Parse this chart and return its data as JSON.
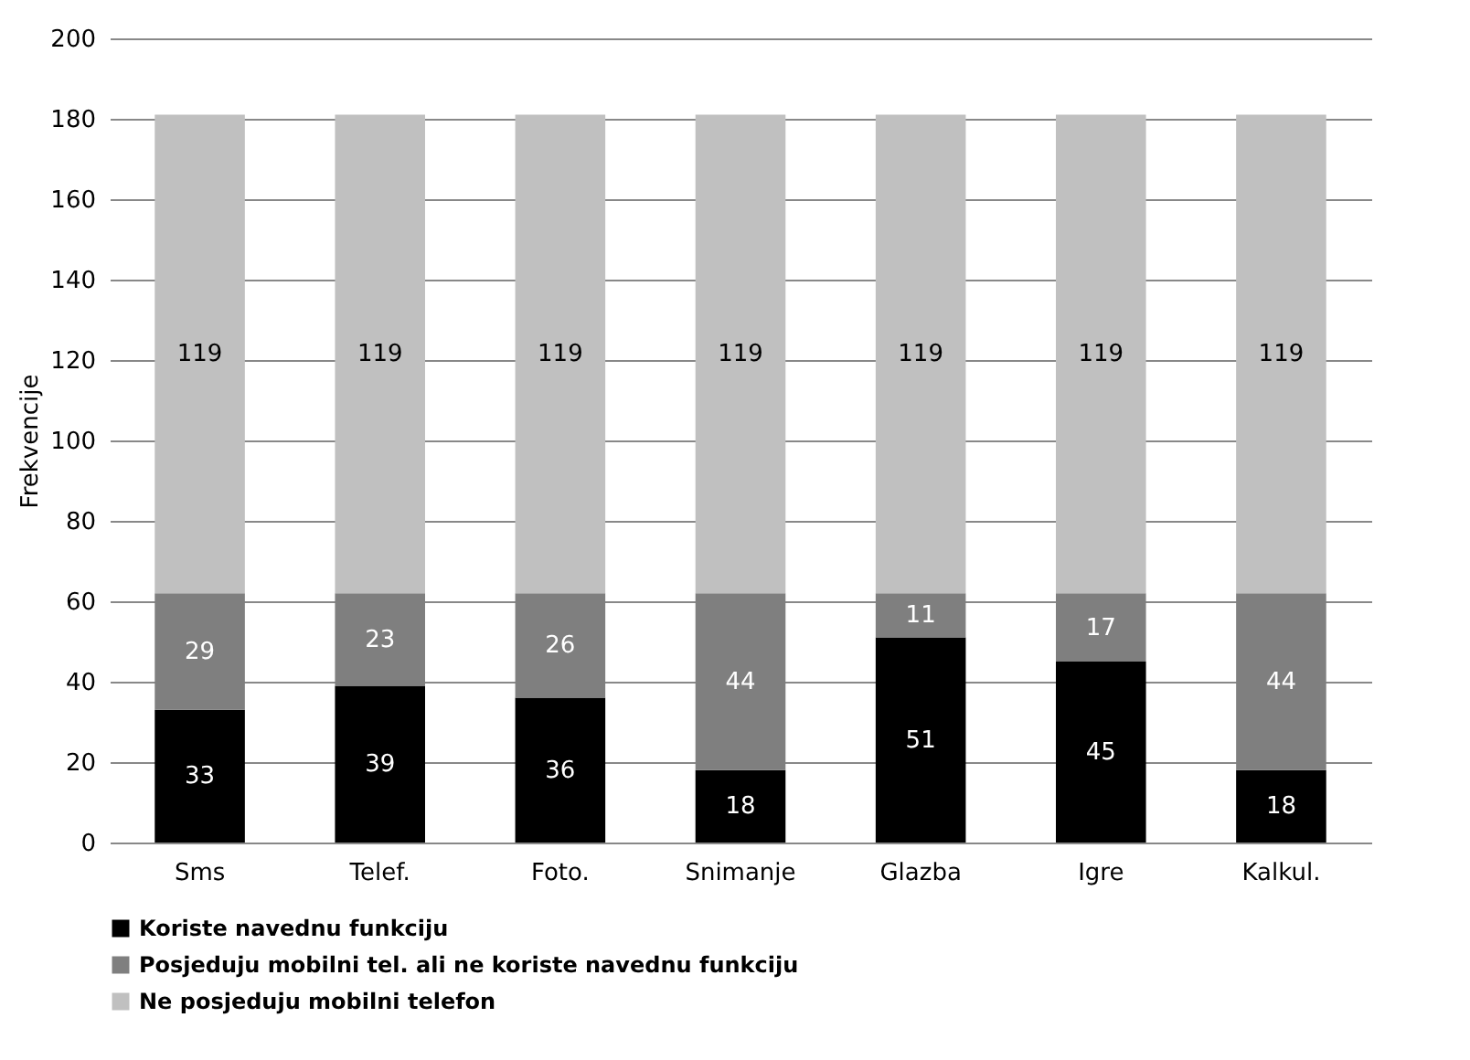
{
  "chart_data": {
    "type": "bar",
    "stacked": true,
    "ylabel": "Frekvencije",
    "categories": [
      "Sms",
      "Telef.",
      "Foto.",
      "Snimanje",
      "Glazba",
      "Igre",
      "Kalkul."
    ],
    "series": [
      {
        "name": "Koriste navednu funkciju",
        "color": "#000000",
        "values": [
          33,
          39,
          36,
          18,
          51,
          45,
          18
        ]
      },
      {
        "name": "Posjeduju mobilni tel. ali ne koriste navednu funkciju",
        "color": "#7f7f7f",
        "values": [
          29,
          23,
          26,
          44,
          11,
          17,
          44
        ]
      },
      {
        "name": "Ne posjeduju mobilni telefon",
        "color": "#c0c0c0",
        "values": [
          119,
          119,
          119,
          119,
          119,
          119,
          119
        ]
      }
    ],
    "ylim": [
      0,
      200
    ],
    "yticks": [
      0,
      20,
      40,
      60,
      80,
      100,
      120,
      140,
      160,
      180,
      200
    ],
    "grid": "y",
    "legend": "bottom",
    "data_labels": true
  }
}
